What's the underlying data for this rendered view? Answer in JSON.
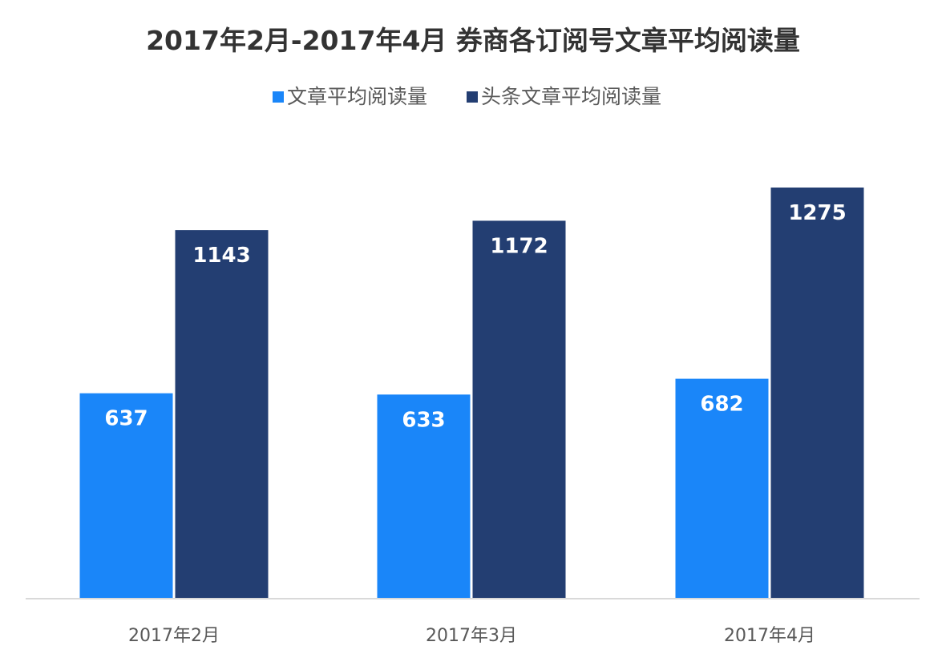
{
  "chart_data": {
    "type": "bar",
    "title": "2017年2月-2017年4月 券商各订阅号文章平均阅读量",
    "xlabel": "",
    "ylabel": "",
    "categories": [
      "2017年2月",
      "2017年3月",
      "2017年4月"
    ],
    "series": [
      {
        "name": "文章平均阅读量",
        "values": [
          637,
          633,
          682
        ],
        "color": "#1a86f9"
      },
      {
        "name": "头条文章平均阅读量",
        "values": [
          1143,
          1172,
          1275
        ],
        "color": "#233e72"
      }
    ],
    "ylim": [
      0,
      1275
    ],
    "grid": false,
    "legend_position": "top-center",
    "data_labels": true
  }
}
